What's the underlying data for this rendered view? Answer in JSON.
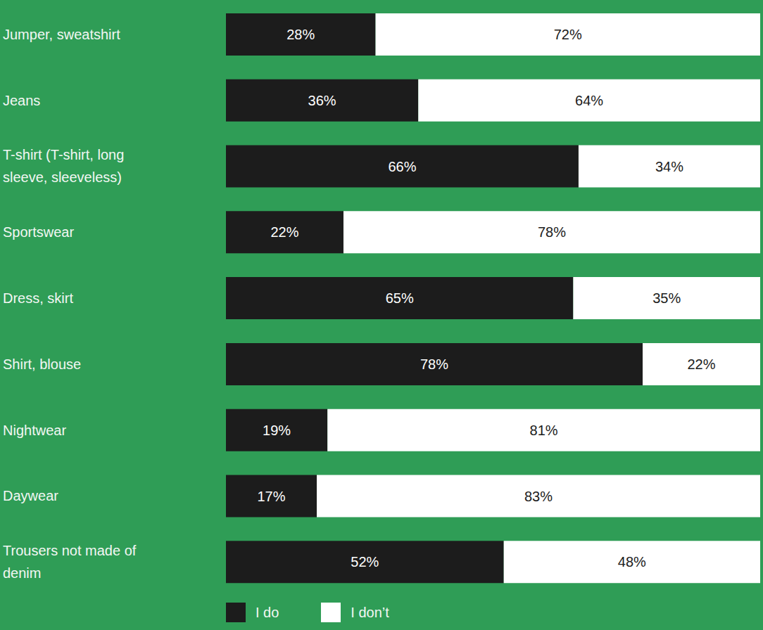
{
  "chart_data": {
    "type": "bar",
    "orientation": "horizontal",
    "stacked": true,
    "data_labels": true,
    "tick_labels": "y",
    "legend": "bottom",
    "categories": [
      "Jumper, sweatshirt",
      "Jeans",
      "T-shirt (T-shirt, long sleeve, sleeveless)",
      "Sportswear",
      "Dress, skirt",
      "Shirt, blouse",
      "Nightwear",
      "Daywear",
      "Trousers not made of denim"
    ],
    "xlim": [
      0,
      100
    ],
    "series": [
      {
        "name": "I do",
        "color": "#1c1c1c",
        "values": [
          28,
          36,
          66,
          22,
          65,
          78,
          19,
          17,
          52
        ],
        "value_labels": [
          "28%",
          "36%",
          "66%",
          "22%",
          "65%",
          "78%",
          "19%",
          "17%",
          "52%"
        ]
      },
      {
        "name": "I don’t",
        "color": "#ffffff",
        "values": [
          72,
          64,
          34,
          78,
          35,
          22,
          81,
          83,
          48
        ],
        "value_labels": [
          "72%",
          "64%",
          "34%",
          "78%",
          "35%",
          "22%",
          "81%",
          "83%",
          "48%"
        ]
      }
    ]
  }
}
